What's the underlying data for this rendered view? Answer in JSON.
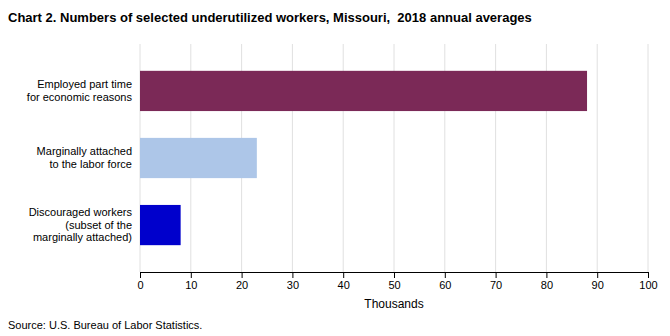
{
  "chart_data": {
    "type": "bar",
    "orientation": "horizontal",
    "title": "Chart 2. Numbers of selected underutilized workers, Missouri,  2018 annual averages",
    "categories": [
      "Discouraged workers\n(subset of the\nmarginally attached)",
      "Marginally attached\nto the labor force",
      "Employed part time\nfor economic reasons"
    ],
    "values": [
      8,
      23,
      88
    ],
    "colors": [
      "#0000cc",
      "#adc6e8",
      "#7b2957"
    ],
    "xlim": [
      0,
      100
    ],
    "xticks": [
      0,
      10,
      20,
      30,
      40,
      50,
      60,
      70,
      80,
      90,
      100
    ],
    "xlabel": "Thousands",
    "source": "Source: U.S. Bureau of Labor Statistics.",
    "grid": true
  }
}
